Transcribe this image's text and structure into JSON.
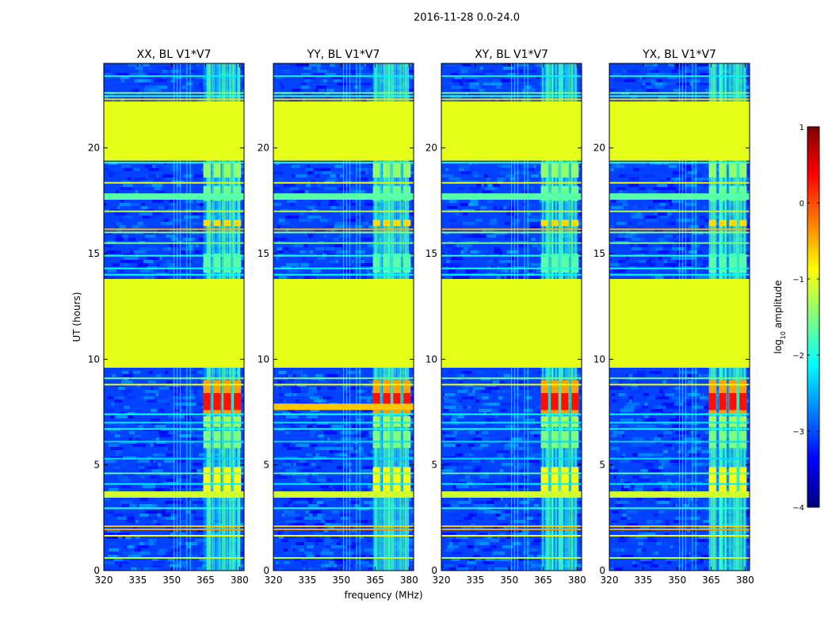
{
  "chart_data": {
    "type": "heatmap",
    "suptitle": "2016-11-28 0.0-24.0",
    "xlabel": "frequency (MHz)",
    "ylabel": "UT (hours)",
    "xlim": [
      320,
      382
    ],
    "ylim": [
      0,
      24
    ],
    "xticks": [
      320,
      335,
      350,
      365,
      380
    ],
    "yticks": [
      0,
      5,
      10,
      15,
      20
    ],
    "panels": [
      {
        "title": "XX, BL V1*V7"
      },
      {
        "title": "YY, BL V1*V7"
      },
      {
        "title": "XY, BL V1*V7"
      },
      {
        "title": "YX, BL V1*V7"
      }
    ],
    "colorbar": {
      "label": "log10 amplitude",
      "label_base": "log",
      "label_sub": "10",
      "label_rest": " amplitude",
      "range": [
        -4,
        1
      ],
      "ticks": [
        1,
        0,
        -1,
        -2,
        -3,
        -4
      ],
      "tick_labels": [
        "1",
        "0",
        "−1",
        "−2",
        "−3",
        "−4"
      ],
      "colormap": "jet",
      "colors": [
        "#00007f",
        "#0000ff",
        "#007fff",
        "#00ffff",
        "#7fff7f",
        "#ffff00",
        "#ff7f00",
        "#ff0000",
        "#7f0000"
      ]
    },
    "flagged_value": -1.0,
    "flagged_ut_ranges": [
      [
        9.6,
        13.8
      ],
      [
        19.4,
        22.2
      ]
    ],
    "rfi_band_mhz": [
      364,
      380
    ],
    "rfi_band_columns_mhz": [
      364,
      368.5,
      373,
      377.5
    ]
  }
}
